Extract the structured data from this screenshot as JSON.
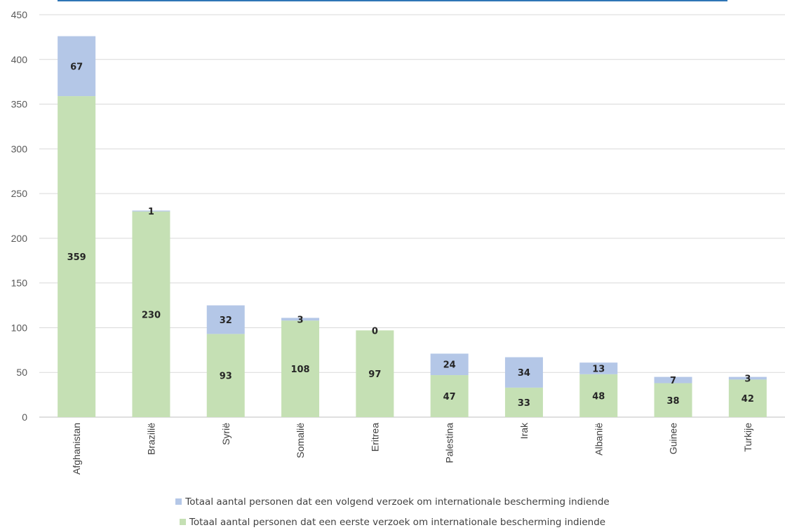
{
  "chart_data": {
    "type": "bar",
    "stacked": true,
    "categories": [
      "Afghanistan",
      "Brazilië",
      "Syrië",
      "Somalië",
      "Eritrea",
      "Palestina",
      "Irak",
      "Albanië",
      "Guinee",
      "Turkije"
    ],
    "series": [
      {
        "name": "Totaal aantal personen dat een eerste verzoek om internationale bescherming indiende",
        "color": "#c5e0b4",
        "values": [
          359,
          230,
          93,
          108,
          97,
          47,
          33,
          48,
          38,
          42
        ]
      },
      {
        "name": "Totaal aantal personen dat een volgend verzoek om internationale bescherming indiende",
        "color": "#b4c7e7",
        "values": [
          67,
          1,
          32,
          3,
          0,
          24,
          34,
          13,
          7,
          3
        ]
      }
    ],
    "yticks": [
      0,
      50,
      100,
      150,
      200,
      250,
      300,
      350,
      400,
      450
    ],
    "ylim": [
      0,
      450
    ],
    "grid": true,
    "legend_position": "bottom"
  },
  "colors": {
    "grid": "#d9d9d9",
    "top_border": "#2e75b6"
  }
}
